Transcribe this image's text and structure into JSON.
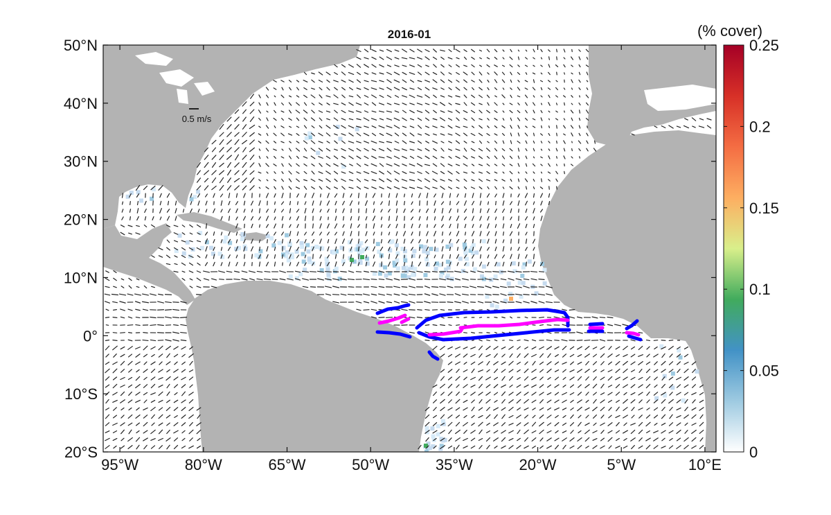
{
  "map": {
    "title": "2016-01",
    "lon_range": [
      -98,
      12
    ],
    "lat_range": [
      -20,
      50
    ],
    "lon_ticks": [
      {
        "value": -95,
        "label": "95°W"
      },
      {
        "value": -80,
        "label": "80°W"
      },
      {
        "value": -65,
        "label": "65°W"
      },
      {
        "value": -50,
        "label": "50°W"
      },
      {
        "value": -35,
        "label": "35°W"
      },
      {
        "value": -20,
        "label": "20°W"
      },
      {
        "value": -5,
        "label": "5°W"
      },
      {
        "value": 10,
        "label": "10°E"
      }
    ],
    "lat_ticks": [
      {
        "value": 50,
        "label": "50°N"
      },
      {
        "value": 40,
        "label": "40°N"
      },
      {
        "value": 30,
        "label": "30°N"
      },
      {
        "value": 20,
        "label": "20°N"
      },
      {
        "value": 10,
        "label": "10°N"
      },
      {
        "value": 0,
        "label": "0°"
      },
      {
        "value": -10,
        "label": "10°S"
      },
      {
        "value": -20,
        "label": "20°S"
      }
    ],
    "scale_label": "0.5 m/s",
    "land_color": "#b3b3b3",
    "ocean_color": "#ffffff",
    "arrow_color": "#222222",
    "contour_outer_color": "#0000ff",
    "contour_inner_color": "#ff00ff"
  },
  "colorbar": {
    "title": "(% cover)",
    "range": [
      0,
      0.25
    ],
    "ticks": [
      {
        "value": 0.25,
        "label": "0.25"
      },
      {
        "value": 0.2,
        "label": "0.2"
      },
      {
        "value": 0.15,
        "label": "0.15"
      },
      {
        "value": 0.1,
        "label": "0.1"
      },
      {
        "value": 0.05,
        "label": "0.05"
      },
      {
        "value": 0,
        "label": "0"
      }
    ],
    "colors": [
      "#ffffff",
      "#9ecae1",
      "#4292c6",
      "#41ab5d",
      "#d9ef8b",
      "#fdae61",
      "#f46d43",
      "#d73027",
      "#a50026"
    ]
  }
}
